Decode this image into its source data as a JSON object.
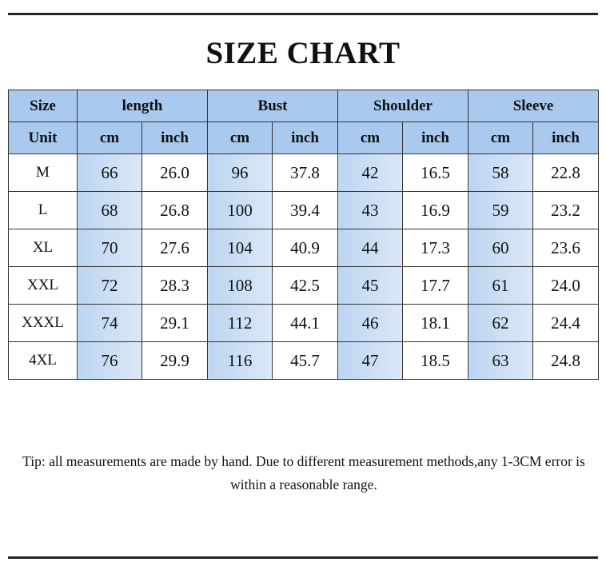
{
  "title": "SIZE CHART",
  "table": {
    "header": [
      "Size",
      "length",
      "Bust",
      "Shoulder",
      "Sleeve"
    ],
    "units": [
      "Unit",
      "cm",
      "inch",
      "cm",
      "inch",
      "cm",
      "inch",
      "cm",
      "inch"
    ],
    "rows": [
      [
        "M",
        "66",
        "26.0",
        "96",
        "37.8",
        "42",
        "16.5",
        "58",
        "22.8"
      ],
      [
        "L",
        "68",
        "26.8",
        "100",
        "39.4",
        "43",
        "16.9",
        "59",
        "23.2"
      ],
      [
        "XL",
        "70",
        "27.6",
        "104",
        "40.9",
        "44",
        "17.3",
        "60",
        "23.6"
      ],
      [
        "XXL",
        "72",
        "28.3",
        "108",
        "42.5",
        "45",
        "17.7",
        "61",
        "24.0"
      ],
      [
        "XXXL",
        "74",
        "29.1",
        "112",
        "44.1",
        "46",
        "18.1",
        "62",
        "24.4"
      ],
      [
        "4XL",
        "76",
        "29.9",
        "116",
        "45.7",
        "47",
        "18.5",
        "63",
        "24.8"
      ]
    ]
  },
  "tip": "Tip: all measurements are made by hand. Due to different measurement methods,any 1-3CM error is within a reasonable range."
}
